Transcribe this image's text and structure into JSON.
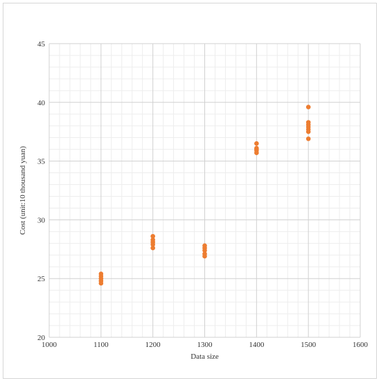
{
  "chart_data": {
    "type": "scatter",
    "title": "",
    "xlabel": "Data size",
    "ylabel": "Cost (unit:10 thousand yuan)",
    "xlim": [
      1000,
      1600
    ],
    "ylim": [
      20,
      45
    ],
    "x_ticks": [
      1000,
      1100,
      1200,
      1300,
      1400,
      1500,
      1600
    ],
    "y_ticks": [
      20,
      25,
      30,
      35,
      40,
      45
    ],
    "grid": true,
    "legend": "none",
    "series": [
      {
        "color": "#ed7d31",
        "points": [
          {
            "x": 1100,
            "y": 25.4
          },
          {
            "x": 1100,
            "y": 25.2
          },
          {
            "x": 1100,
            "y": 25.0
          },
          {
            "x": 1100,
            "y": 24.8
          },
          {
            "x": 1100,
            "y": 24.6
          },
          {
            "x": 1200,
            "y": 28.6
          },
          {
            "x": 1200,
            "y": 28.3
          },
          {
            "x": 1200,
            "y": 28.1
          },
          {
            "x": 1200,
            "y": 27.9
          },
          {
            "x": 1200,
            "y": 27.6
          },
          {
            "x": 1300,
            "y": 27.8
          },
          {
            "x": 1300,
            "y": 27.6
          },
          {
            "x": 1300,
            "y": 27.4
          },
          {
            "x": 1300,
            "y": 27.1
          },
          {
            "x": 1300,
            "y": 26.9
          },
          {
            "x": 1400,
            "y": 36.5
          },
          {
            "x": 1400,
            "y": 36.1
          },
          {
            "x": 1400,
            "y": 36.0
          },
          {
            "x": 1400,
            "y": 35.9
          },
          {
            "x": 1400,
            "y": 35.7
          },
          {
            "x": 1500,
            "y": 39.6
          },
          {
            "x": 1500,
            "y": 38.3
          },
          {
            "x": 1500,
            "y": 38.1
          },
          {
            "x": 1500,
            "y": 37.9
          },
          {
            "x": 1500,
            "y": 37.7
          },
          {
            "x": 1500,
            "y": 37.5
          },
          {
            "x": 1500,
            "y": 36.9
          }
        ]
      }
    ]
  }
}
